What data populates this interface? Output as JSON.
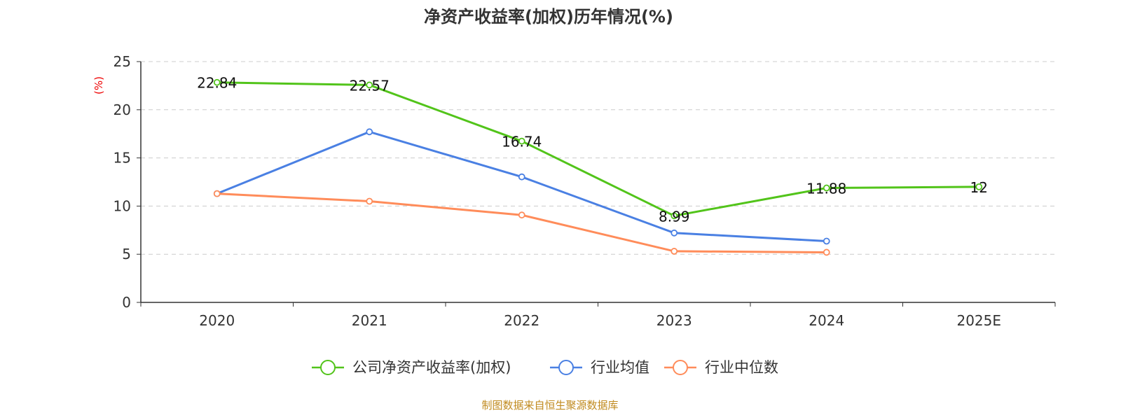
{
  "chart_data": {
    "type": "line",
    "title": "净资产收益率(加权)历年情况(%)",
    "ylabel": "(%)",
    "categories": [
      "2020",
      "2021",
      "2022",
      "2023",
      "2024",
      "2025E"
    ],
    "ylim": [
      0,
      25
    ],
    "yticks": [
      0,
      5,
      10,
      15,
      20,
      25
    ],
    "grid": true,
    "legend_position": "bottom",
    "series": [
      {
        "name": "公司净资产收益率(加权)",
        "color": "#52c41a",
        "values": [
          22.84,
          22.57,
          16.74,
          8.99,
          11.88,
          12
        ],
        "labels": [
          "22.84",
          "22.57",
          "16.74",
          "8.99",
          "11.88",
          "12"
        ]
      },
      {
        "name": "行业均值",
        "color": "#4a80e3",
        "values": [
          11.29,
          17.71,
          13.03,
          7.21,
          6.36,
          null
        ]
      },
      {
        "name": "行业中位数",
        "color": "#ff8c5a",
        "values": [
          11.29,
          10.5,
          9.07,
          5.31,
          5.2,
          null
        ]
      }
    ]
  },
  "source": "制图数据来自恒生聚源数据库"
}
